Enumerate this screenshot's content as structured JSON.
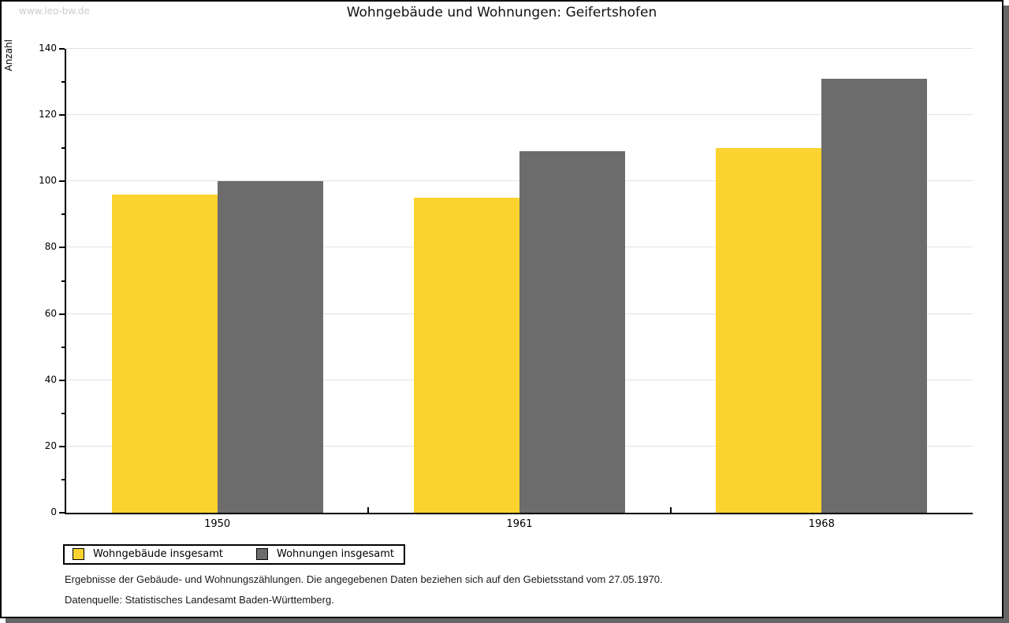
{
  "watermark": "www.leo-bw.de",
  "title": "Wohngebäude und Wohnungen: Geifertshofen",
  "chart_data": {
    "type": "bar",
    "title": "Wohngebäude und Wohnungen: Geifertshofen",
    "xlabel": "",
    "ylabel": "Anzahl",
    "categories": [
      "1950",
      "1961",
      "1968"
    ],
    "series": [
      {
        "name": "Wohngebäude insgesamt",
        "color": "#FCD32E",
        "values": [
          96,
          95,
          110
        ]
      },
      {
        "name": "Wohnungen insgesamt",
        "color": "#6C6C6C",
        "values": [
          100,
          109,
          131
        ]
      }
    ],
    "ylim": [
      0,
      140
    ],
    "ytick_step": 20,
    "yminor_step": 10,
    "grid": true,
    "gridline_color": "#e2e2e2",
    "legend_position": "bottom-left"
  },
  "footnotes": {
    "line1": "Ergebnisse der Gebäude- und Wohnungszählungen. Die angegebenen Daten beziehen sich auf den Gebietsstand vom 27.05.1970.",
    "line2": "Datenquelle: Statistisches Landesamt Baden-Württemberg."
  }
}
